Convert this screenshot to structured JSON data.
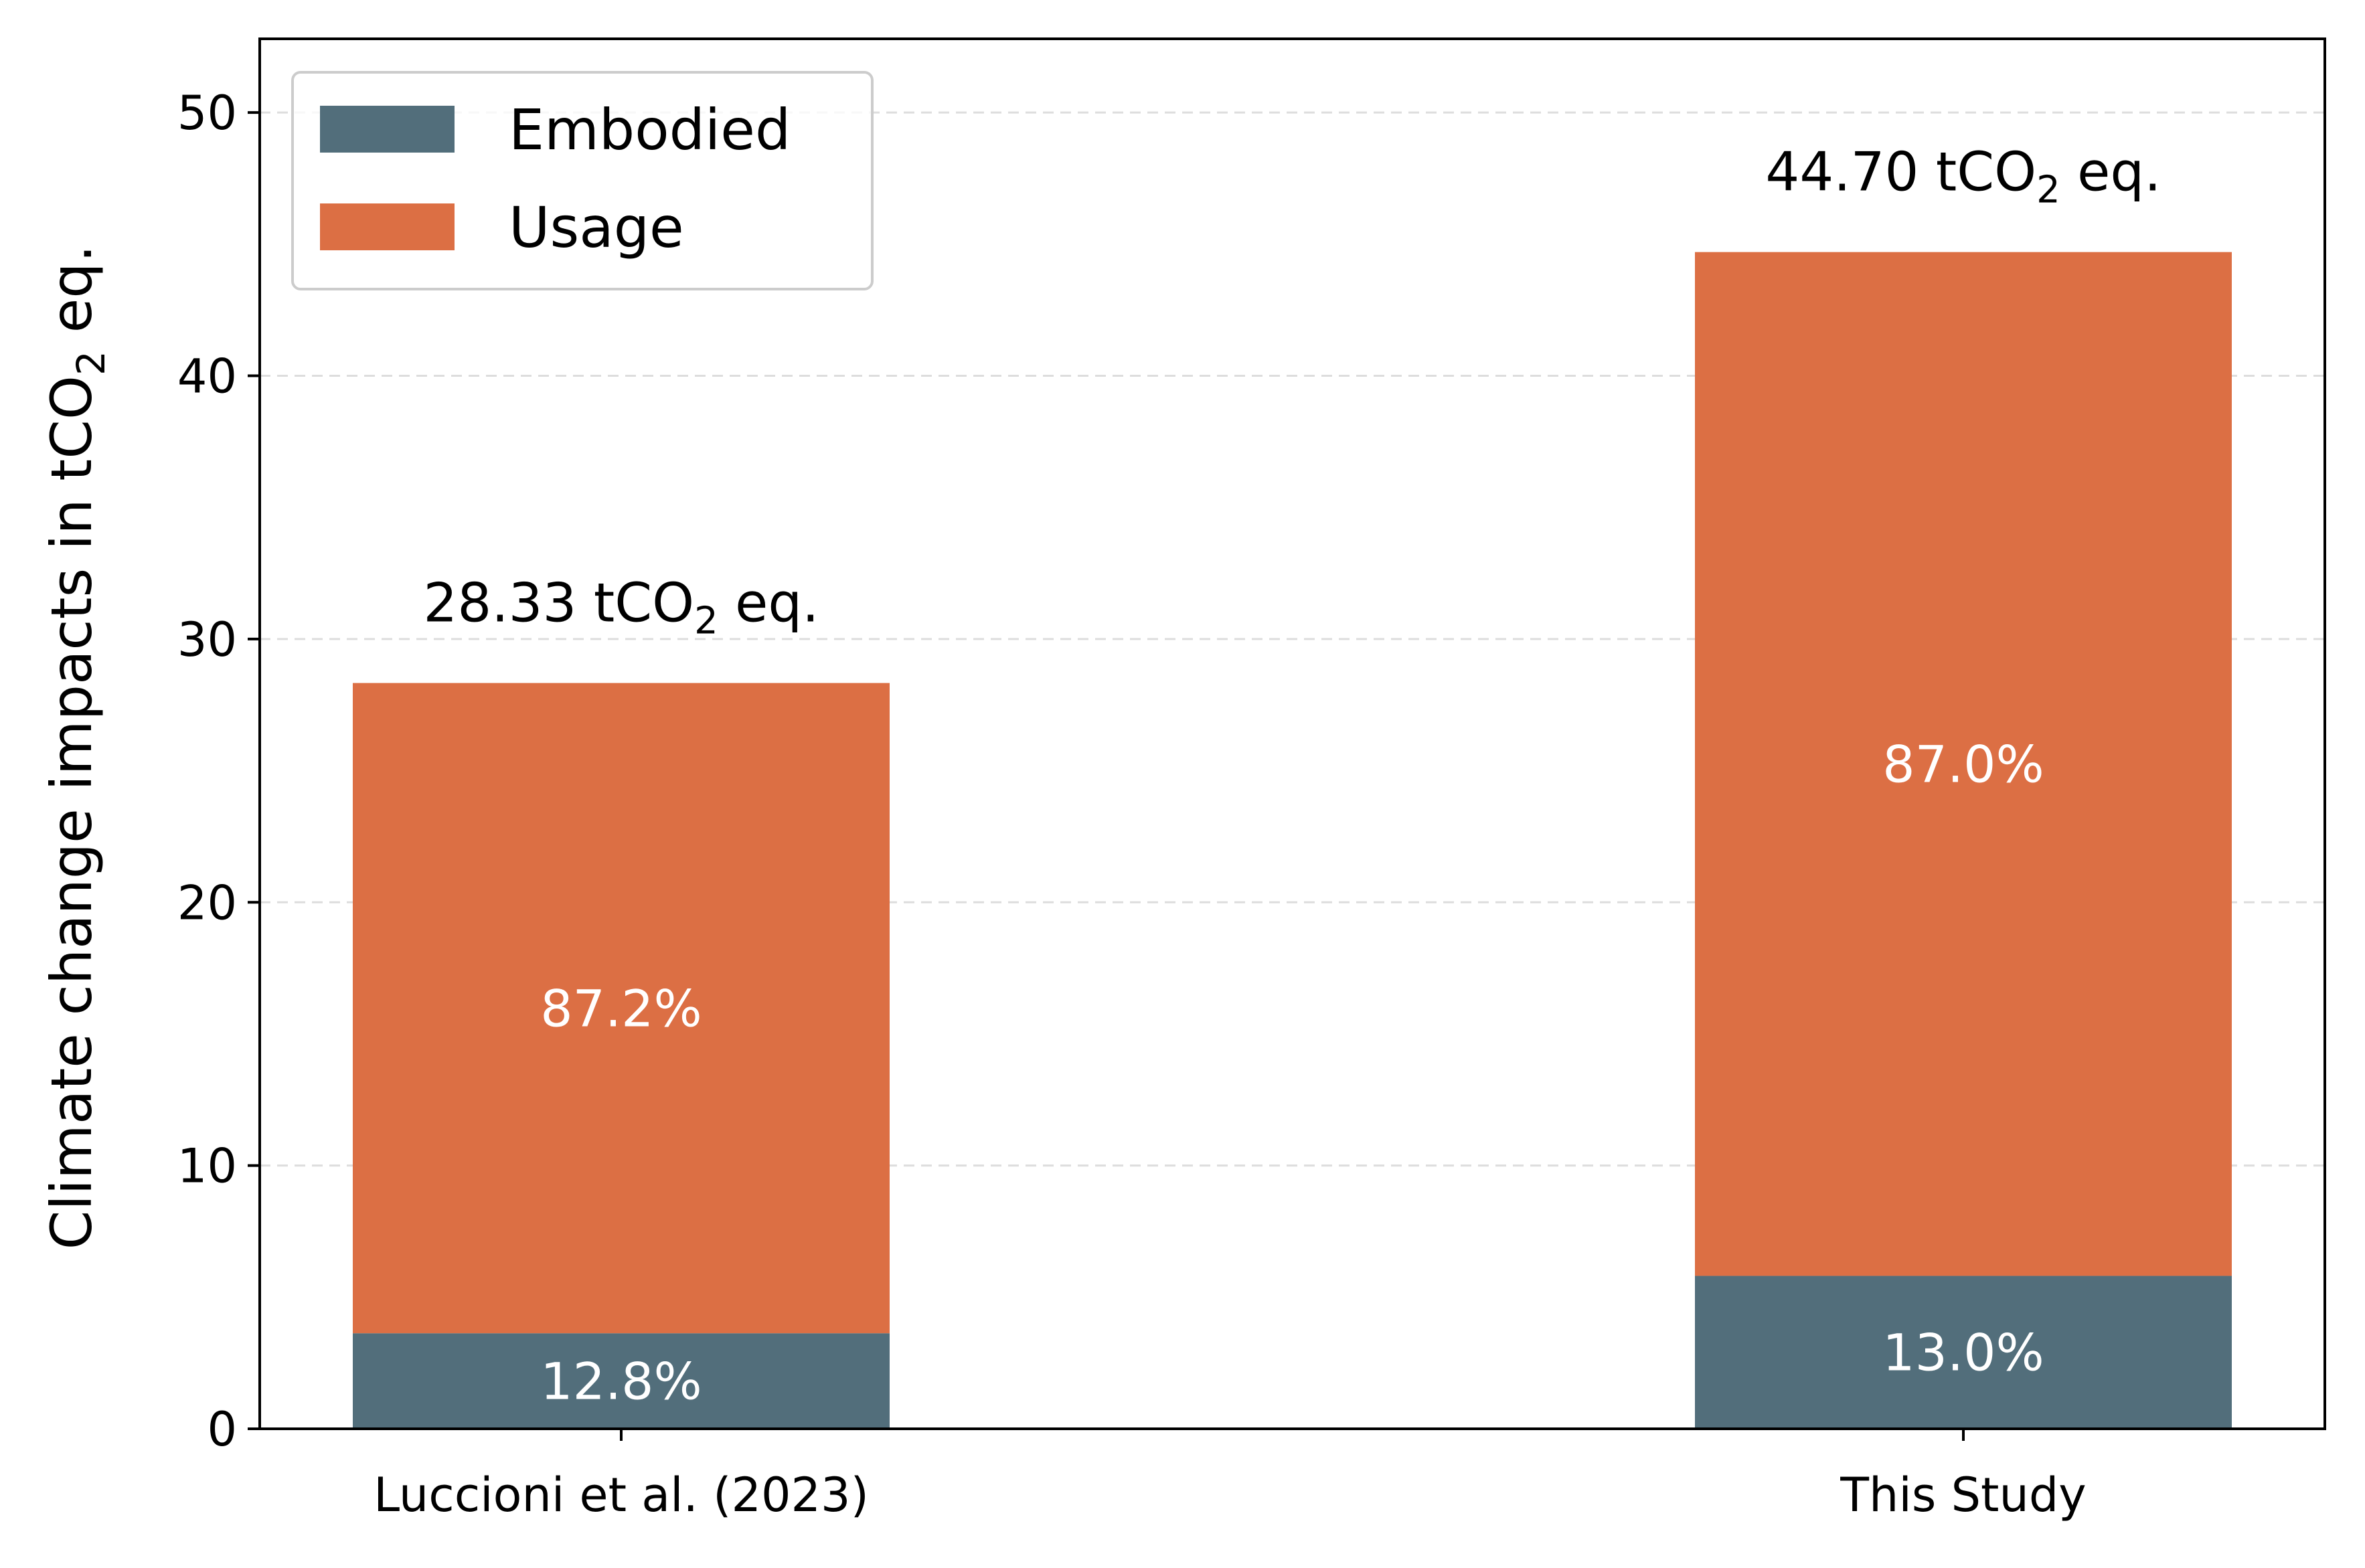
{
  "chart_data": {
    "type": "bar",
    "stacked": true,
    "categories": [
      "Luccioni et al. (2023)",
      "This Study"
    ],
    "series": [
      {
        "name": "Embodied",
        "values": [
          3.63,
          5.81
        ],
        "color": "#526e7b",
        "labels": [
          "12.8%",
          "13.0%"
        ]
      },
      {
        "name": "Usage",
        "values": [
          24.7,
          38.89
        ],
        "color": "#dc6f44",
        "labels": [
          "87.2%",
          "87.0%"
        ]
      }
    ],
    "totals": [
      28.33,
      44.7
    ],
    "total_labels": [
      {
        "prefix": "28.33 tCO",
        "sub": "2",
        "suffix": " eq."
      },
      {
        "prefix": "44.70 tCO",
        "sub": "2",
        "suffix": " eq."
      }
    ],
    "ylabel": {
      "prefix": "Climate change impacts in tCO",
      "sub": "2",
      "suffix": " eq."
    },
    "xlabel": "",
    "ylim": [
      0,
      52.8
    ],
    "yticks": [
      0,
      10,
      20,
      30,
      40,
      50
    ],
    "grid": {
      "axis": "y",
      "style": "dashed"
    },
    "legend": {
      "placement": "top-left",
      "entries": [
        "Embodied",
        "Usage"
      ]
    }
  }
}
